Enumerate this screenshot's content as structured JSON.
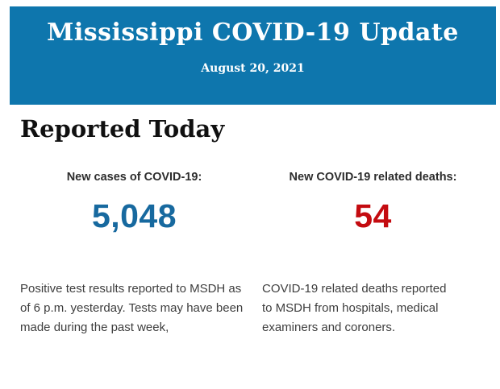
{
  "header": {
    "title": "Mississippi COVID-19 Update",
    "date": "August 20, 2021",
    "background_color": "#0e76ad",
    "text_color": "#ffffff"
  },
  "main": {
    "section_title": "Reported Today",
    "stats": [
      {
        "label": "New cases of COVID-19:",
        "value": "5,048",
        "value_color": "#17699f",
        "description": "Positive test results reported to MSDH as of 6 p.m. yesterday. Tests may have been made during the past week,"
      },
      {
        "label": "New COVID-19 related deaths:",
        "value": "54",
        "value_color": "#c40b10",
        "description": "COVID-19 related deaths reported to MSDH from hospitals, medical examiners and coroners."
      }
    ]
  }
}
